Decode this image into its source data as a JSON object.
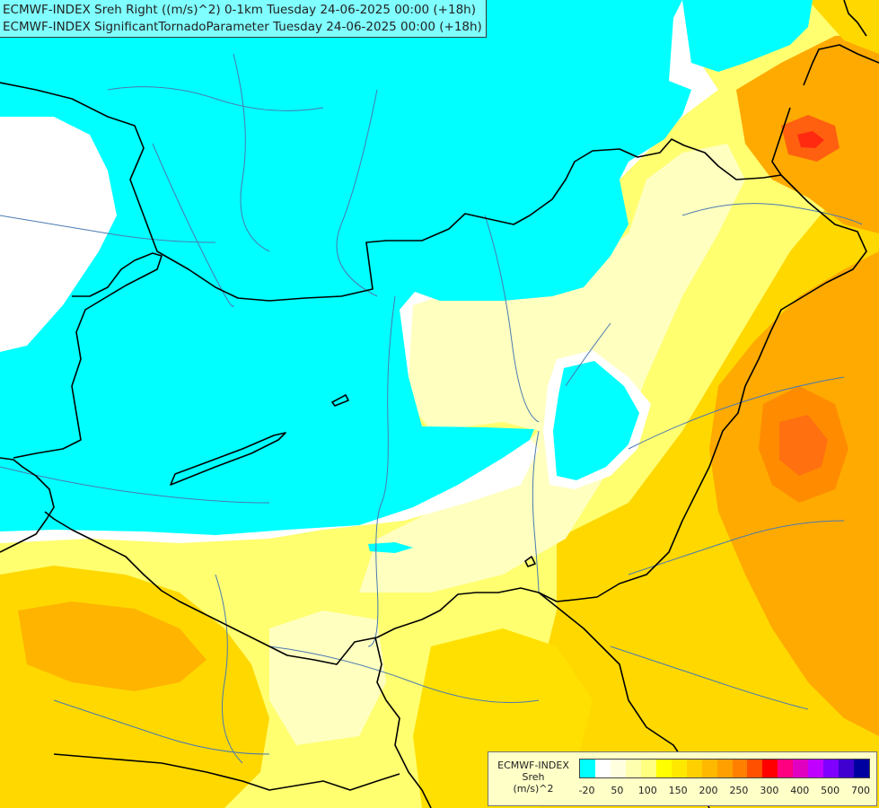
{
  "titles": {
    "line1": "ECMWF-INDEX Sreh Right ((m/s)^2) 0-1km Tuesday 24-06-2025 00:00 (+18h)",
    "line2": "ECMWF-INDEX SignificantTornadoParameter Tuesday 24-06-2025 00:00 (+18h)"
  },
  "legend": {
    "model": "ECMWF-INDEX",
    "variable": "Sreh",
    "unit": "(m/s)^2",
    "colors": [
      "#00ffff",
      "#ffffff",
      "#ffffe0",
      "#ffffb0",
      "#ffff80",
      "#ffff00",
      "#ffe800",
      "#ffd000",
      "#ffb800",
      "#ffa000",
      "#ff8000",
      "#ff5000",
      "#ff0000",
      "#ff0080",
      "#e000c0",
      "#c000ff",
      "#8000ff",
      "#4000d0",
      "#0000a0"
    ],
    "ticks": [
      {
        "label": "-20",
        "i": 0.5
      },
      {
        "label": "50",
        "i": 1.5
      },
      {
        "label": "100",
        "i": 2.5
      },
      {
        "label": "150",
        "i": 3.5
      },
      {
        "label": "200",
        "i": 4.5
      },
      {
        "label": "250",
        "i": 5.5
      },
      {
        "label": "300",
        "i": 6.5
      },
      {
        "label": "400",
        "i": 7.5
      },
      {
        "label": "500",
        "i": 8.5
      },
      {
        "label": "700",
        "i": 9.5
      }
    ]
  },
  "palette": {
    "cyan": "#00ffff",
    "white": "#ffffff",
    "pale": "#ffffc0",
    "light_yellow": "#ffff80",
    "yellow": "#ffee00",
    "gold": "#ffcc00",
    "orange": "#ffa500",
    "dark_orange": "#ff7a10",
    "red_orange": "#ff4a10",
    "border": "#000000",
    "river": "#4a7ab0"
  }
}
